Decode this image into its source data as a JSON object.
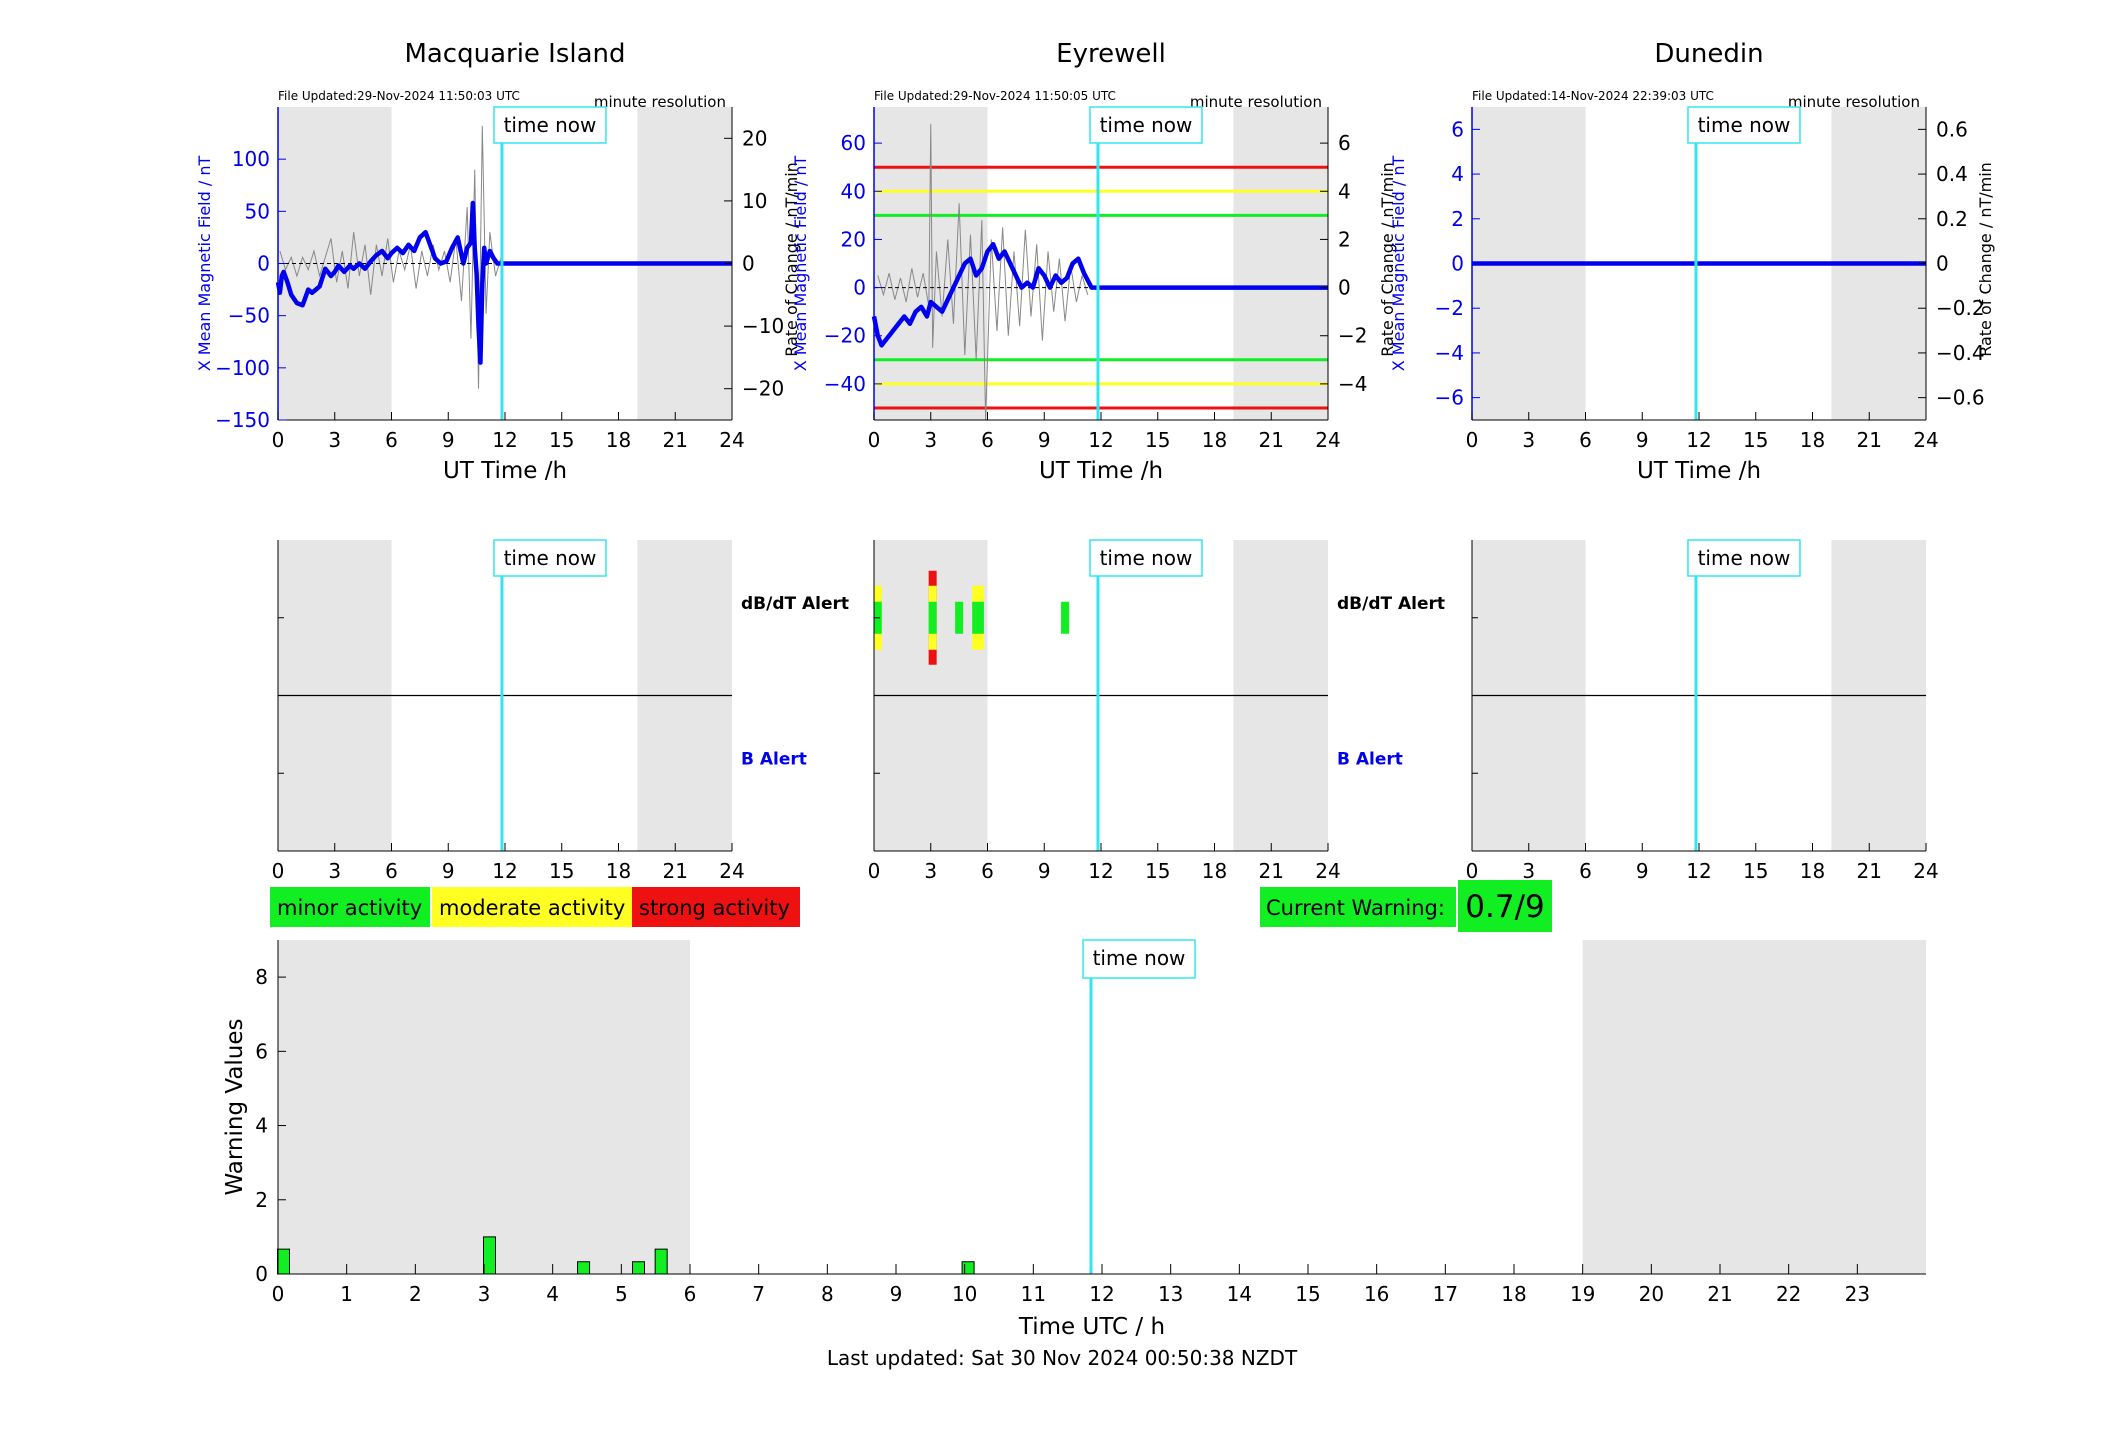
{
  "page": {
    "last_updated": "Last updated: Sat 30 Nov 2024 00:50:38 NZDT"
  },
  "common": {
    "time_now_label": "time now",
    "time_now_hour": 11.84,
    "night_shading": [
      [
        0,
        6
      ],
      [
        19,
        24
      ]
    ],
    "resolution_label": "minute resolution",
    "x_axis_label": "UT Time /h",
    "left_axis_label": "X Mean Magnetic Field / nT",
    "right_axis_label": "Rate of Change / nT/min",
    "dbdt_alert_label": "dB/dT Alert",
    "b_alert_label": "B Alert",
    "x_ticks": [
      0,
      3,
      6,
      9,
      12,
      15,
      18,
      21,
      24
    ]
  },
  "legend": {
    "minor": "minor activity",
    "moderate": "moderate activity",
    "strong": "strong activity",
    "current_warning_label": "Current Warning:",
    "current_warning_value": "0.7/9"
  },
  "colors": {
    "field": "#0000ee",
    "time_now": "#33e6ee",
    "minor": "#11ee22",
    "moderate": "#ffff22",
    "strong": "#ee1111",
    "night": "#e6e6e6"
  },
  "chart_data": [
    {
      "type": "line",
      "title": "Macquarie Island",
      "file_updated": "File Updated:29-Nov-2024 11:50:03 UTC",
      "xlim": [
        0,
        24
      ],
      "ylim_left": [
        -150,
        150
      ],
      "left_ticks": [
        -150,
        -100,
        -50,
        0,
        50,
        100
      ],
      "ylim_right": [
        -25,
        25
      ],
      "right_ticks": [
        -20,
        -10,
        0,
        10,
        20
      ],
      "series": [
        {
          "axis": "left",
          "x": [
            0,
            0.1,
            0.2,
            0.3,
            0.5,
            0.7,
            1.0,
            1.3,
            1.6,
            1.8,
            2.0,
            2.2,
            2.5,
            2.8,
            3.0,
            3.2,
            3.5,
            3.8,
            4.0,
            4.3,
            4.6,
            4.9,
            5.2,
            5.5,
            5.8,
            6.0,
            6.3,
            6.6,
            6.9,
            7.2,
            7.5,
            7.8,
            8.0,
            8.3,
            8.6,
            8.9,
            9.2,
            9.5,
            9.8,
            10.0,
            10.2,
            10.3,
            10.4,
            10.5,
            10.6,
            10.7,
            10.8,
            10.9,
            11.0,
            11.2,
            11.4,
            11.6,
            11.84,
            24
          ],
          "y": [
            -18,
            -28,
            -12,
            -8,
            -18,
            -30,
            -38,
            -40,
            -25,
            -28,
            -25,
            -22,
            -5,
            -12,
            -8,
            -2,
            -8,
            -2,
            -5,
            0,
            -5,
            2,
            8,
            12,
            5,
            10,
            15,
            10,
            18,
            12,
            25,
            30,
            20,
            5,
            0,
            2,
            15,
            25,
            0,
            15,
            20,
            58,
            15,
            -10,
            -60,
            -95,
            -20,
            15,
            0,
            12,
            5,
            0,
            0,
            0
          ]
        },
        {
          "axis": "right",
          "x": [
            0.1,
            0.4,
            0.7,
            1.0,
            1.3,
            1.6,
            1.9,
            2.2,
            2.5,
            2.8,
            3.1,
            3.4,
            3.7,
            4.0,
            4.3,
            4.6,
            4.9,
            5.2,
            5.5,
            5.8,
            6.1,
            6.4,
            6.7,
            7.0,
            7.3,
            7.6,
            7.9,
            8.2,
            8.5,
            8.8,
            9.1,
            9.4,
            9.7,
            10.0,
            10.2,
            10.4,
            10.6,
            10.8,
            11.0,
            11.2,
            11.5,
            11.8
          ],
          "y": [
            2,
            -1,
            1,
            -2,
            1,
            -1,
            2,
            -2,
            1,
            4,
            -3,
            2,
            -4,
            5,
            -2,
            3,
            -5,
            3,
            -2,
            4,
            -3,
            2,
            -1,
            3,
            -4,
            2,
            -2,
            3,
            -1,
            2,
            -3,
            4,
            -6,
            9,
            -12,
            15,
            -20,
            22,
            -8,
            5,
            -2,
            1
          ]
        }
      ],
      "alerts": {
        "dbdt": [],
        "b": []
      }
    },
    {
      "type": "line",
      "title": "Eyrewell",
      "file_updated": "File Updated:29-Nov-2024 11:50:05 UTC",
      "xlim": [
        0,
        24
      ],
      "ylim_left": [
        -55,
        75
      ],
      "left_ticks": [
        -40,
        -20,
        0,
        20,
        40,
        60
      ],
      "ylim_right": [
        -5.5,
        7.5
      ],
      "right_ticks": [
        -4,
        -2,
        0,
        2,
        4,
        6
      ],
      "thresholds": [
        {
          "value": 50,
          "level": "strong"
        },
        {
          "value": 40,
          "level": "moderate"
        },
        {
          "value": 30,
          "level": "minor"
        },
        {
          "value": -30,
          "level": "minor"
        },
        {
          "value": -40,
          "level": "moderate"
        },
        {
          "value": -50,
          "level": "strong"
        }
      ],
      "series": [
        {
          "axis": "left",
          "x": [
            0,
            0.2,
            0.4,
            0.6,
            0.8,
            1.0,
            1.3,
            1.6,
            1.9,
            2.2,
            2.5,
            2.8,
            3.0,
            3.3,
            3.6,
            3.9,
            4.2,
            4.5,
            4.8,
            5.1,
            5.4,
            5.7,
            6.0,
            6.3,
            6.6,
            6.9,
            7.2,
            7.5,
            7.8,
            8.1,
            8.4,
            8.7,
            9.0,
            9.3,
            9.6,
            9.9,
            10.2,
            10.5,
            10.8,
            11.1,
            11.5,
            11.84,
            24
          ],
          "y": [
            -12,
            -20,
            -24,
            -22,
            -20,
            -18,
            -15,
            -12,
            -15,
            -10,
            -8,
            -12,
            -6,
            -8,
            -10,
            -5,
            0,
            5,
            10,
            12,
            5,
            8,
            15,
            18,
            12,
            15,
            10,
            5,
            0,
            2,
            0,
            8,
            5,
            0,
            5,
            2,
            4,
            10,
            12,
            6,
            0,
            0,
            0
          ]
        },
        {
          "axis": "right",
          "x": [
            0.2,
            0.5,
            0.8,
            1.1,
            1.4,
            1.7,
            2.0,
            2.3,
            2.6,
            2.9,
            3.0,
            3.1,
            3.3,
            3.6,
            3.9,
            4.2,
            4.5,
            4.8,
            5.1,
            5.4,
            5.7,
            5.9,
            6.2,
            6.5,
            6.8,
            7.1,
            7.4,
            7.7,
            8.0,
            8.3,
            8.6,
            8.9,
            9.2,
            9.5,
            9.8,
            10.1,
            10.4,
            10.7,
            11.0,
            11.3
          ],
          "y": [
            0.5,
            -0.3,
            0.6,
            -0.5,
            0.4,
            -0.6,
            0.8,
            -0.4,
            0.6,
            -0.8,
            6.8,
            -2.5,
            1.5,
            -1.2,
            2.0,
            -1.5,
            3.5,
            -2.8,
            2.2,
            -3.0,
            2.8,
            -5.5,
            2.0,
            -1.8,
            2.5,
            -2.0,
            1.5,
            -1.6,
            2.4,
            -1.2,
            1.8,
            -2.2,
            1.5,
            -1.0,
            1.2,
            -1.4,
            0.9,
            -0.6,
            0.5,
            -0.3
          ]
        }
      ],
      "alerts": {
        "dbdt": [
          {
            "x": 0.2,
            "level": "moderate"
          },
          {
            "x": 3.1,
            "level": "strong"
          },
          {
            "x": 4.5,
            "level": "minor"
          },
          {
            "x": 5.4,
            "level": "moderate"
          },
          {
            "x": 5.6,
            "level": "moderate"
          },
          {
            "x": 10.1,
            "level": "minor"
          }
        ],
        "b": []
      }
    },
    {
      "type": "line",
      "title": "Dunedin",
      "file_updated": "File Updated:14-Nov-2024 22:39:03 UTC",
      "xlim": [
        0,
        24
      ],
      "ylim_left": [
        -7,
        7
      ],
      "left_ticks": [
        -6,
        -4,
        -2,
        0,
        2,
        4,
        6
      ],
      "ylim_right": [
        -0.7,
        0.7
      ],
      "right_ticks": [
        -0.6,
        -0.4,
        -0.2,
        0,
        0.2,
        0.4,
        0.6
      ],
      "series": [
        {
          "axis": "left",
          "x": [
            0,
            24
          ],
          "y": [
            0,
            0
          ]
        }
      ],
      "alerts": {
        "dbdt": [],
        "b": []
      }
    },
    {
      "type": "bar",
      "title": "",
      "xlabel": "Time UTC / h",
      "ylabel": "Warning Values",
      "xlim": [
        0,
        24
      ],
      "ylim": [
        0,
        9
      ],
      "y_ticks": [
        0,
        2,
        4,
        6,
        8
      ],
      "x_ticks": [
        0,
        1,
        2,
        3,
        4,
        5,
        6,
        7,
        8,
        9,
        10,
        11,
        12,
        13,
        14,
        15,
        16,
        17,
        18,
        19,
        20,
        21,
        22,
        23
      ],
      "x": [
        0.08,
        3.08,
        4.45,
        5.25,
        5.58,
        10.05
      ],
      "values": [
        0.67,
        1.0,
        0.33,
        0.33,
        0.67,
        0.33
      ]
    }
  ]
}
